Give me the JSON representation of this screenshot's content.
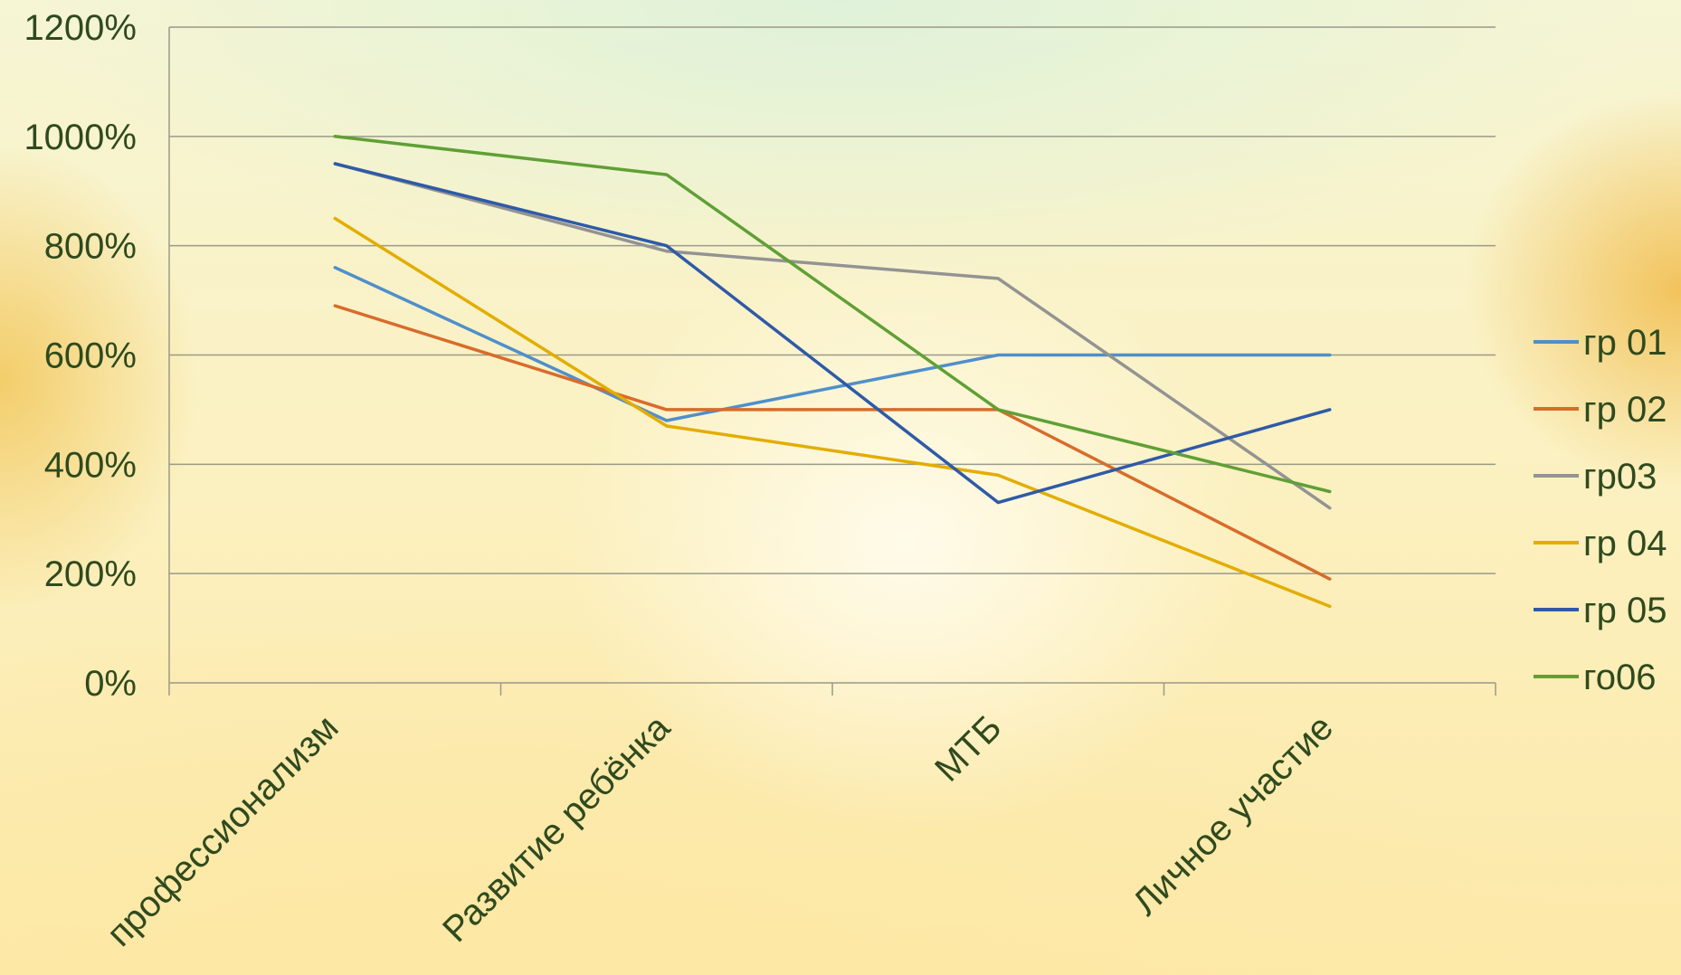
{
  "chart_data": {
    "type": "line",
    "categories": [
      "профессионализм",
      "Развитие ребёнка",
      "МТБ",
      "Личное участие"
    ],
    "y_ticks": [
      "0%",
      "200%",
      "400%",
      "600%",
      "800%",
      "1000%",
      "1200%"
    ],
    "ylim": [
      0,
      12
    ],
    "grid": true,
    "legend_position": "right",
    "series": [
      {
        "name": "гр 01",
        "color": "#4f8fcb",
        "values": [
          7.6,
          4.8,
          6.0,
          6.0
        ]
      },
      {
        "name": "гр 02",
        "color": "#d86c2a",
        "values": [
          6.9,
          5.0,
          5.0,
          1.9
        ]
      },
      {
        "name": "гр03",
        "color": "#939393",
        "values": [
          9.5,
          7.9,
          7.4,
          3.2
        ]
      },
      {
        "name": "гр 04",
        "color": "#e3ad00",
        "values": [
          8.5,
          4.7,
          3.8,
          1.4
        ]
      },
      {
        "name": "гр 05",
        "color": "#2f5aa8",
        "values": [
          9.5,
          8.0,
          3.3,
          5.0
        ]
      },
      {
        "name": "го06",
        "color": "#5fa035",
        "values": [
          10.0,
          9.3,
          5.0,
          3.5
        ]
      }
    ]
  }
}
